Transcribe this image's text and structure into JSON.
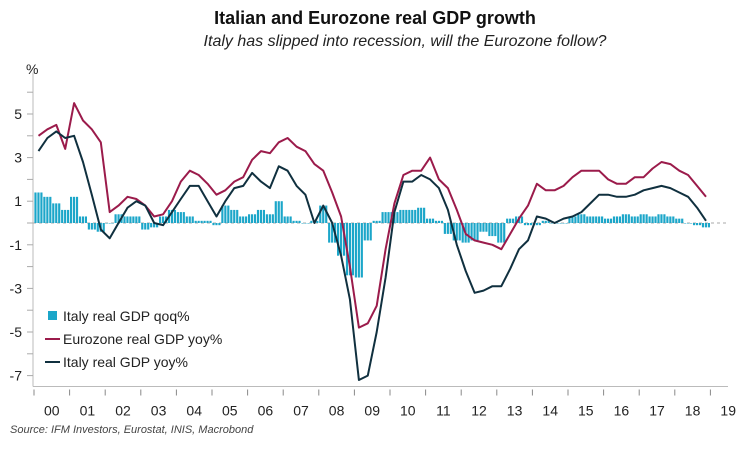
{
  "chart_data": {
    "type": "bar+line",
    "title": "Italian and Eurozone real GDP growth",
    "subtitle": "Italy has slipped into recession, will the Eurozone follow?",
    "ylabel": "%",
    "source": "Source: IFM Investors, Eurostat, INIS, Macrobond",
    "ylim": [
      -7.5,
      6.9
    ],
    "yticks": [
      5,
      3,
      1,
      -1,
      -3,
      -5,
      -7
    ],
    "xtick_labels": [
      "00",
      "01",
      "02",
      "03",
      "04",
      "05",
      "06",
      "07",
      "08",
      "09",
      "10",
      "11",
      "12",
      "13",
      "14",
      "15",
      "16",
      "17",
      "18",
      "19"
    ],
    "x_start_year": 2000,
    "frequency": "quarterly",
    "legend_placement": "bottom-left",
    "colors": {
      "qoq": "#1ba6c9",
      "eurozone": "#9b1b4b",
      "italy": "#10303f"
    },
    "series": [
      {
        "name": "Italy real GDP qoq%",
        "kind": "bar",
        "values": [
          1.4,
          1.2,
          0.9,
          0.6,
          1.2,
          0.3,
          -0.3,
          -0.4,
          0.0,
          0.4,
          0.3,
          0.3,
          -0.3,
          -0.2,
          0.3,
          0.6,
          0.5,
          0.3,
          0.1,
          0.1,
          -0.1,
          0.8,
          0.6,
          0.3,
          0.4,
          0.6,
          0.4,
          1.0,
          0.3,
          0.1,
          0.0,
          0.1,
          0.8,
          -0.9,
          -1.5,
          -2.4,
          -2.5,
          -0.8,
          0.1,
          0.5,
          0.5,
          0.6,
          0.6,
          0.7,
          0.2,
          0.1,
          -0.5,
          -0.8,
          -0.9,
          -0.8,
          -0.4,
          -0.6,
          -0.9,
          0.2,
          0.3,
          -0.1,
          -0.1,
          0.1,
          0.0,
          0.0,
          0.3,
          0.4,
          0.3,
          0.3,
          0.2,
          0.3,
          0.4,
          0.3,
          0.4,
          0.3,
          0.4,
          0.3,
          0.2,
          0.0,
          -0.1,
          -0.2
        ]
      },
      {
        "name": "Eurozone real GDP yoy%",
        "kind": "line",
        "values": [
          4.0,
          4.3,
          4.5,
          3.4,
          5.5,
          4.7,
          4.3,
          3.7,
          0.5,
          0.8,
          1.2,
          1.1,
          0.8,
          0.3,
          0.4,
          1.0,
          1.9,
          2.4,
          2.2,
          1.8,
          1.3,
          1.5,
          1.9,
          2.1,
          2.9,
          3.3,
          3.2,
          3.7,
          3.9,
          3.5,
          3.3,
          2.7,
          2.4,
          1.4,
          0.3,
          -2.0,
          -4.8,
          -4.6,
          -3.8,
          -1.2,
          0.9,
          2.2,
          2.4,
          2.4,
          3.0,
          2.0,
          1.6,
          0.6,
          -0.5,
          -0.8,
          -0.9,
          -1.0,
          -1.2,
          -0.5,
          0.2,
          0.8,
          1.8,
          1.5,
          1.5,
          1.7,
          2.1,
          2.4,
          2.4,
          2.4,
          2.0,
          1.8,
          1.8,
          2.1,
          2.1,
          2.5,
          2.8,
          2.7,
          2.4,
          2.2,
          1.7,
          1.2
        ]
      },
      {
        "name": "Italy real GDP yoy%",
        "kind": "line",
        "values": [
          3.3,
          3.9,
          4.2,
          3.9,
          4.0,
          2.8,
          1.3,
          -0.3,
          -0.7,
          0.0,
          0.7,
          1.0,
          0.8,
          0.0,
          -0.1,
          0.5,
          1.1,
          1.7,
          1.7,
          1.0,
          0.3,
          1.0,
          1.6,
          1.7,
          2.3,
          1.9,
          1.6,
          2.6,
          2.4,
          1.7,
          1.3,
          0.0,
          0.8,
          0.0,
          -1.5,
          -3.5,
          -7.2,
          -7.0,
          -5.0,
          -2.5,
          0.5,
          1.9,
          1.9,
          2.2,
          2.0,
          1.6,
          0.6,
          -1.0,
          -2.2,
          -3.2,
          -3.1,
          -2.9,
          -2.9,
          -2.1,
          -1.2,
          -0.8,
          0.3,
          0.2,
          0.0,
          0.2,
          0.3,
          0.5,
          0.9,
          1.3,
          1.3,
          1.2,
          1.2,
          1.3,
          1.5,
          1.6,
          1.7,
          1.6,
          1.4,
          1.2,
          0.7,
          0.1
        ]
      }
    ]
  }
}
